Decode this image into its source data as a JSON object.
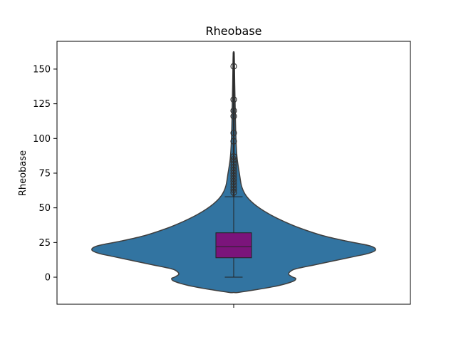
{
  "chart_data": {
    "type": "violin",
    "title": "Rheobase",
    "xlabel": "",
    "ylabel": "Rheobase",
    "ylim": [
      -19.5,
      170
    ],
    "yticks": [
      0,
      25,
      50,
      75,
      100,
      125,
      150
    ],
    "grid": false,
    "legend": "none",
    "colors": {
      "violin_fill": "#3274a1",
      "violin_edge": "#3f3f3f",
      "box_fill": "#7b147b",
      "whisker": "#222222",
      "outlier_edge": "#333333"
    },
    "violin": {
      "min": -11,
      "max": 162,
      "density_profile": [
        {
          "y": -11,
          "w": 0.03
        },
        {
          "y": -9,
          "w": 0.16
        },
        {
          "y": -6,
          "w": 0.32
        },
        {
          "y": -3,
          "w": 0.42
        },
        {
          "y": -1,
          "w": 0.44
        },
        {
          "y": 0,
          "w": 0.42
        },
        {
          "y": 2,
          "w": 0.39
        },
        {
          "y": 4,
          "w": 0.4
        },
        {
          "y": 6,
          "w": 0.44
        },
        {
          "y": 9,
          "w": 0.58
        },
        {
          "y": 12,
          "w": 0.72
        },
        {
          "y": 15,
          "w": 0.86
        },
        {
          "y": 17,
          "w": 0.95
        },
        {
          "y": 19,
          "w": 1.0
        },
        {
          "y": 21,
          "w": 1.0
        },
        {
          "y": 23,
          "w": 0.95
        },
        {
          "y": 26,
          "w": 0.8
        },
        {
          "y": 30,
          "w": 0.63
        },
        {
          "y": 35,
          "w": 0.48
        },
        {
          "y": 40,
          "w": 0.36
        },
        {
          "y": 45,
          "w": 0.26
        },
        {
          "y": 50,
          "w": 0.18
        },
        {
          "y": 55,
          "w": 0.12
        },
        {
          "y": 60,
          "w": 0.08
        },
        {
          "y": 66,
          "w": 0.055
        },
        {
          "y": 75,
          "w": 0.04
        },
        {
          "y": 85,
          "w": 0.025
        },
        {
          "y": 95,
          "w": 0.018
        },
        {
          "y": 110,
          "w": 0.013
        },
        {
          "y": 125,
          "w": 0.01
        },
        {
          "y": 140,
          "w": 0.007
        },
        {
          "y": 155,
          "w": 0.005
        },
        {
          "y": 162,
          "w": 0.003
        }
      ]
    },
    "box": {
      "whisker_low": 0,
      "q1": 14,
      "median": 22,
      "q3": 32,
      "whisker_high": 58
    },
    "outliers": [
      61,
      63,
      65,
      67,
      69,
      71,
      73,
      75,
      77,
      79,
      81,
      83,
      85,
      87,
      98,
      104,
      116,
      120,
      128,
      152
    ]
  }
}
